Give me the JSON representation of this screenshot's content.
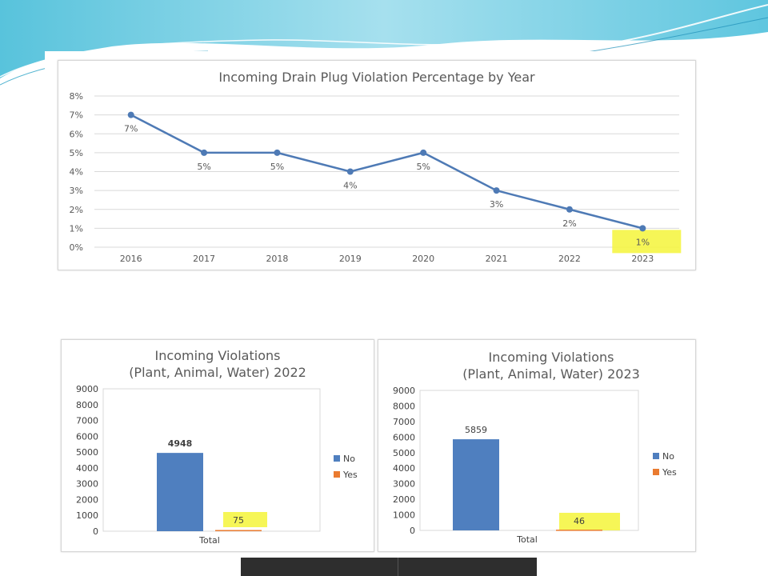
{
  "colors": {
    "line": "#4e7ab5",
    "bar_no": "#4f7fbf",
    "bar_yes": "#ea7b30",
    "grid": "#d9d9d9",
    "highlight": "#f5f53a",
    "text": "#595959"
  },
  "line_chart": {
    "title": "Incoming Drain Plug Violation Percentage by Year"
  },
  "bar_chart_2022": {
    "title_line1": "Incoming Violations",
    "title_line2": "(Plant, Animal, Water) ",
    "title_year": "2022"
  },
  "bar_chart_2023": {
    "title_line1": "Incoming Violations",
    "title_line2": "(Plant, Animal, Water) ",
    "title_year": "2023"
  },
  "chart_data": [
    {
      "type": "line",
      "title": "Incoming Drain Plug Violation Percentage by Year",
      "x": [
        "2016",
        "2017",
        "2018",
        "2019",
        "2020",
        "2021",
        "2022",
        "2023"
      ],
      "series": [
        {
          "values": [
            7,
            5,
            5,
            4,
            5,
            3,
            2,
            1
          ],
          "labels": [
            "7%",
            "5%",
            "5%",
            "4%",
            "5%",
            "3%",
            "2%",
            "1%"
          ]
        }
      ],
      "yticks": [
        "0%",
        "1%",
        "2%",
        "3%",
        "4%",
        "5%",
        "6%",
        "7%",
        "8%"
      ],
      "ylim": [
        0,
        8
      ],
      "grid": true,
      "highlighted_label": "1%"
    },
    {
      "type": "bar",
      "title": "Incoming Violations (Plant, Animal, Water) 2022",
      "categories": [
        "Total"
      ],
      "series": [
        {
          "name": "No",
          "values": [
            4948
          ]
        },
        {
          "name": "Yes",
          "values": [
            75
          ]
        }
      ],
      "yticks": [
        "0",
        "1000",
        "2000",
        "3000",
        "4000",
        "5000",
        "6000",
        "7000",
        "8000",
        "9000"
      ],
      "ylim": [
        0,
        9000
      ],
      "legend": "right",
      "highlighted_label": "75"
    },
    {
      "type": "bar",
      "title": "Incoming Violations (Plant, Animal, Water) 2023",
      "categories": [
        "Total"
      ],
      "series": [
        {
          "name": "No",
          "values": [
            5859
          ]
        },
        {
          "name": "Yes",
          "values": [
            46
          ]
        }
      ],
      "yticks": [
        "0",
        "1000",
        "2000",
        "3000",
        "4000",
        "5000",
        "6000",
        "7000",
        "8000",
        "9000"
      ],
      "ylim": [
        0,
        9000
      ],
      "legend": "right",
      "highlighted_label": "46"
    }
  ]
}
